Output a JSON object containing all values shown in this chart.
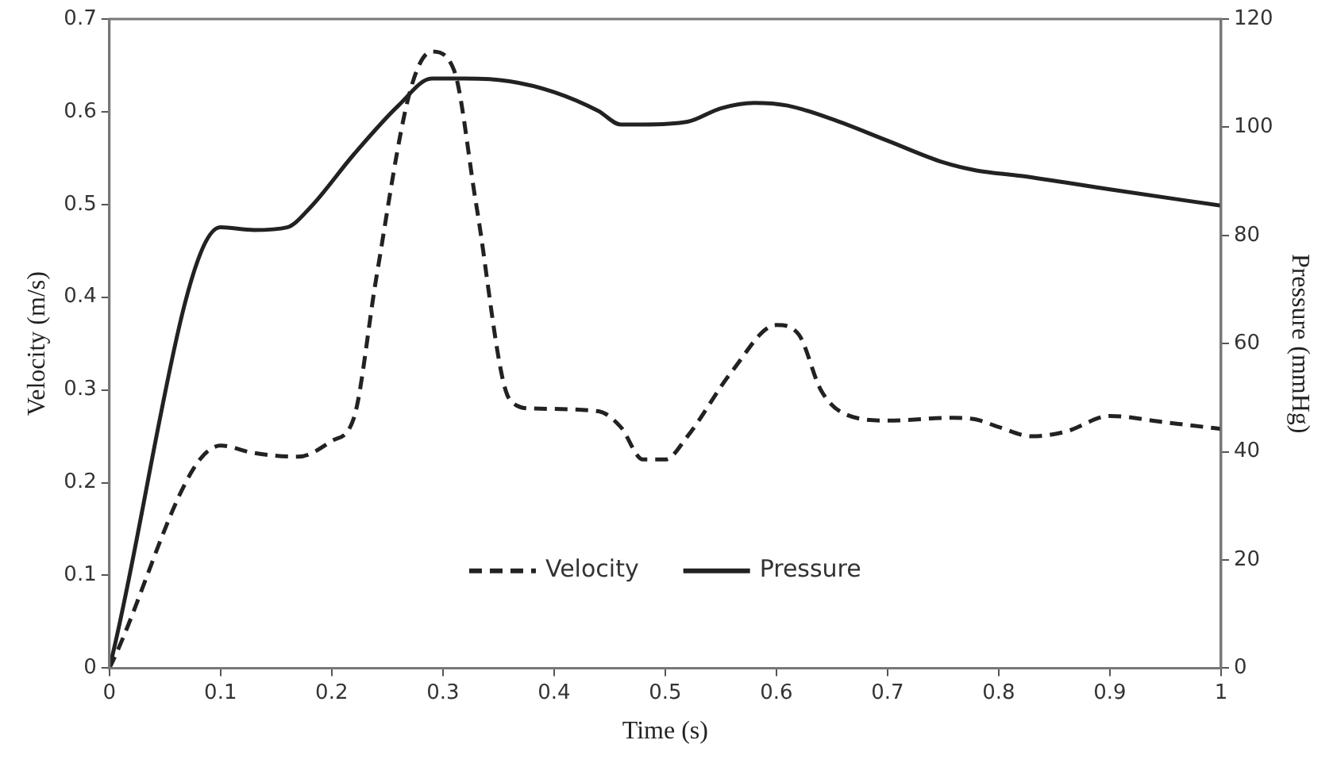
{
  "chart_data": {
    "type": "line",
    "xlabel": "Time (s)",
    "ylabel": "Velocity (m/s)",
    "y2label": "Pressure (mmHg)",
    "xlim": [
      0,
      1
    ],
    "xticks": [
      0,
      0.1,
      0.2,
      0.3,
      0.4,
      0.5,
      0.6,
      0.7,
      0.8,
      0.9,
      1
    ],
    "ylim": [
      0,
      0.7
    ],
    "yticks": [
      0,
      0.1,
      0.2,
      0.3,
      0.4,
      0.5,
      0.6,
      0.7
    ],
    "y2lim": [
      0,
      120
    ],
    "y2ticks": [
      0,
      20,
      40,
      60,
      80,
      100,
      120
    ],
    "grid": false,
    "legend": "bottom",
    "marker": "none",
    "series": [
      {
        "name": "Velocity",
        "color": "#222222",
        "line_style": "dashed",
        "x": [
          0,
          0.1,
          0.13,
          0.17,
          0.2,
          0.22,
          0.24,
          0.27,
          0.29,
          0.31,
          0.33,
          0.36,
          0.38,
          0.44,
          0.46,
          0.48,
          0.5,
          0.52,
          0.56,
          0.6,
          0.62,
          0.64,
          0.66,
          0.7,
          0.76,
          0.78,
          0.8,
          0.83,
          0.86,
          0.9,
          0.95,
          1.0
        ],
        "values": [
          0,
          0.24,
          0.232,
          0.228,
          0.245,
          0.27,
          0.42,
          0.62,
          0.665,
          0.645,
          0.5,
          0.29,
          0.28,
          0.277,
          0.26,
          0.225,
          0.225,
          0.25,
          0.32,
          0.37,
          0.36,
          0.3,
          0.275,
          0.267,
          0.27,
          0.268,
          0.26,
          0.25,
          0.255,
          0.272,
          0.265,
          0.258
        ]
      },
      {
        "name": "Pressure",
        "color": "#222222",
        "line_style": "solid",
        "axis": "y2",
        "x": [
          0,
          0.1,
          0.13,
          0.16,
          0.18,
          0.22,
          0.26,
          0.29,
          0.32,
          0.36,
          0.4,
          0.44,
          0.46,
          0.48,
          0.52,
          0.55,
          0.58,
          0.61,
          0.65,
          0.7,
          0.75,
          0.78,
          0.82,
          0.9,
          1.0
        ],
        "values": [
          0,
          81.5,
          81,
          81.5,
          85,
          95,
          104,
          109,
          109,
          108.5,
          106.5,
          103,
          100.5,
          100.5,
          101,
          103.5,
          104.5,
          104,
          101.5,
          97.5,
          93.5,
          92,
          91,
          88.5,
          85.5
        ]
      }
    ]
  }
}
